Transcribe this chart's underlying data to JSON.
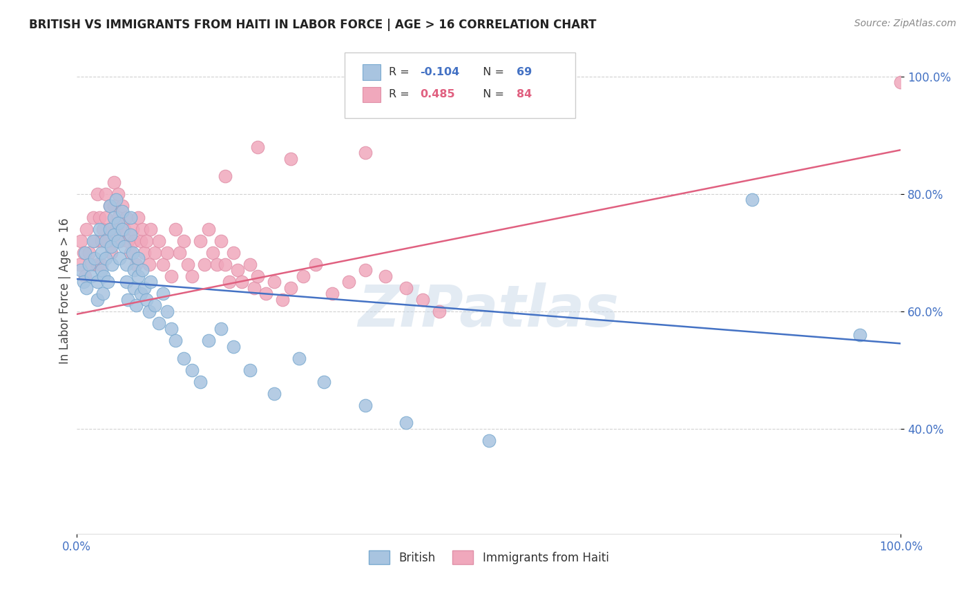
{
  "title": "BRITISH VS IMMIGRANTS FROM HAITI IN LABOR FORCE | AGE > 16 CORRELATION CHART",
  "source": "Source: ZipAtlas.com",
  "ylabel": "In Labor Force | Age > 16",
  "ytick_labels": [
    "40.0%",
    "60.0%",
    "80.0%",
    "100.0%"
  ],
  "ytick_values": [
    0.4,
    0.6,
    0.8,
    1.0
  ],
  "blue_line_color": "#4472c4",
  "pink_line_color": "#e06080",
  "scatter_blue_fill": "#a8c4e0",
  "scatter_pink_fill": "#f0a8bc",
  "scatter_blue_edge": "#7aaad0",
  "scatter_pink_edge": "#e090a8",
  "brit_trend": [
    0.655,
    0.545
  ],
  "haiti_trend": [
    0.595,
    0.875
  ],
  "british_x": [
    0.005,
    0.008,
    0.01,
    0.012,
    0.015,
    0.018,
    0.02,
    0.022,
    0.025,
    0.025,
    0.028,
    0.03,
    0.03,
    0.032,
    0.033,
    0.035,
    0.035,
    0.038,
    0.04,
    0.04,
    0.042,
    0.043,
    0.045,
    0.045,
    0.048,
    0.05,
    0.05,
    0.052,
    0.055,
    0.055,
    0.058,
    0.06,
    0.06,
    0.062,
    0.065,
    0.065,
    0.068,
    0.07,
    0.07,
    0.072,
    0.075,
    0.075,
    0.078,
    0.08,
    0.082,
    0.085,
    0.088,
    0.09,
    0.095,
    0.1,
    0.105,
    0.11,
    0.115,
    0.12,
    0.13,
    0.14,
    0.15,
    0.16,
    0.175,
    0.19,
    0.21,
    0.24,
    0.27,
    0.3,
    0.35,
    0.4,
    0.5,
    0.82,
    0.95
  ],
  "british_y": [
    0.67,
    0.65,
    0.7,
    0.64,
    0.68,
    0.66,
    0.72,
    0.69,
    0.65,
    0.62,
    0.74,
    0.7,
    0.67,
    0.63,
    0.66,
    0.72,
    0.69,
    0.65,
    0.78,
    0.74,
    0.71,
    0.68,
    0.76,
    0.73,
    0.79,
    0.75,
    0.72,
    0.69,
    0.77,
    0.74,
    0.71,
    0.68,
    0.65,
    0.62,
    0.76,
    0.73,
    0.7,
    0.67,
    0.64,
    0.61,
    0.69,
    0.66,
    0.63,
    0.67,
    0.64,
    0.62,
    0.6,
    0.65,
    0.61,
    0.58,
    0.63,
    0.6,
    0.57,
    0.55,
    0.52,
    0.5,
    0.48,
    0.55,
    0.57,
    0.54,
    0.5,
    0.46,
    0.52,
    0.48,
    0.44,
    0.41,
    0.38,
    0.79,
    0.56
  ],
  "haiti_x": [
    0.003,
    0.005,
    0.008,
    0.01,
    0.012,
    0.015,
    0.018,
    0.02,
    0.022,
    0.025,
    0.025,
    0.028,
    0.03,
    0.03,
    0.032,
    0.035,
    0.035,
    0.038,
    0.04,
    0.04,
    0.042,
    0.045,
    0.045,
    0.048,
    0.05,
    0.05,
    0.052,
    0.055,
    0.058,
    0.06,
    0.062,
    0.065,
    0.068,
    0.07,
    0.072,
    0.075,
    0.078,
    0.08,
    0.082,
    0.085,
    0.088,
    0.09,
    0.095,
    0.1,
    0.105,
    0.11,
    0.115,
    0.12,
    0.125,
    0.13,
    0.135,
    0.14,
    0.15,
    0.155,
    0.16,
    0.165,
    0.17,
    0.175,
    0.18,
    0.185,
    0.19,
    0.195,
    0.2,
    0.21,
    0.215,
    0.22,
    0.23,
    0.24,
    0.25,
    0.26,
    0.275,
    0.29,
    0.31,
    0.33,
    0.35,
    0.375,
    0.4,
    0.42,
    0.44,
    0.35,
    0.18,
    0.22,
    0.26,
    1.0
  ],
  "haiti_y": [
    0.68,
    0.72,
    0.7,
    0.66,
    0.74,
    0.7,
    0.68,
    0.76,
    0.72,
    0.8,
    0.68,
    0.76,
    0.72,
    0.68,
    0.74,
    0.8,
    0.76,
    0.72,
    0.78,
    0.74,
    0.7,
    0.82,
    0.78,
    0.74,
    0.8,
    0.76,
    0.72,
    0.78,
    0.74,
    0.76,
    0.72,
    0.7,
    0.74,
    0.72,
    0.68,
    0.76,
    0.72,
    0.74,
    0.7,
    0.72,
    0.68,
    0.74,
    0.7,
    0.72,
    0.68,
    0.7,
    0.66,
    0.74,
    0.7,
    0.72,
    0.68,
    0.66,
    0.72,
    0.68,
    0.74,
    0.7,
    0.68,
    0.72,
    0.68,
    0.65,
    0.7,
    0.67,
    0.65,
    0.68,
    0.64,
    0.66,
    0.63,
    0.65,
    0.62,
    0.64,
    0.66,
    0.68,
    0.63,
    0.65,
    0.67,
    0.66,
    0.64,
    0.62,
    0.6,
    0.87,
    0.83,
    0.88,
    0.86,
    0.99
  ],
  "watermark": "ZIPatlas",
  "watermark_font": 60,
  "background_color": "#ffffff",
  "grid_color": "#cccccc",
  "title_color": "#222222",
  "source_color": "#888888",
  "tick_color": "#4472c4",
  "ylabel_color": "#444444",
  "legend_edge_color": "#cccccc"
}
